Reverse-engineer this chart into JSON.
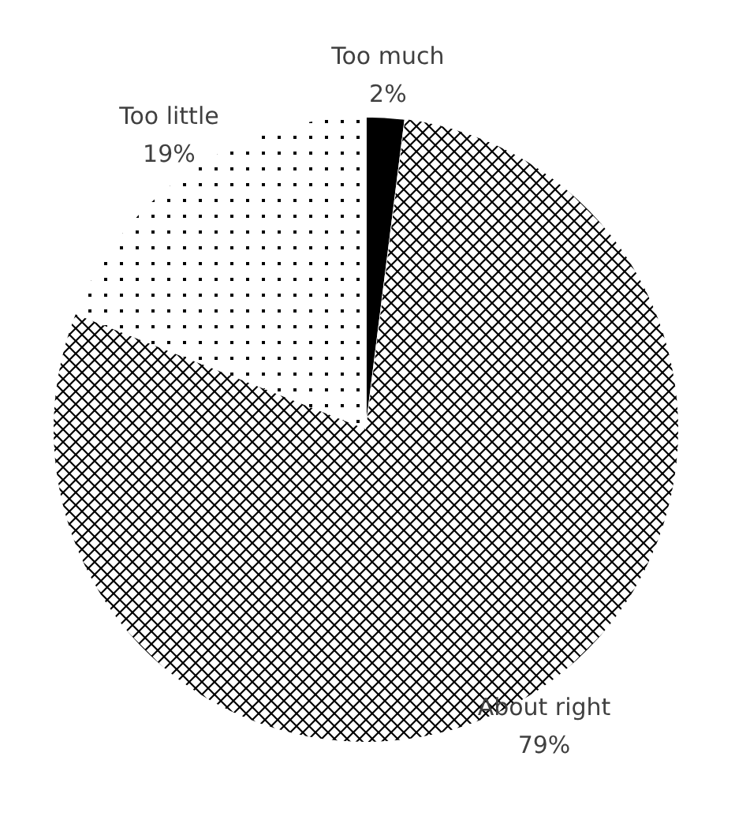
{
  "chart_data": {
    "type": "pie",
    "categories": [
      "Too much",
      "About right",
      "Too little"
    ],
    "values": [
      2,
      79,
      19
    ],
    "colors": [
      "#000000",
      "#ffffff",
      "#ffffff"
    ],
    "value_labels": [
      "2%",
      "79%",
      "19%"
    ]
  }
}
